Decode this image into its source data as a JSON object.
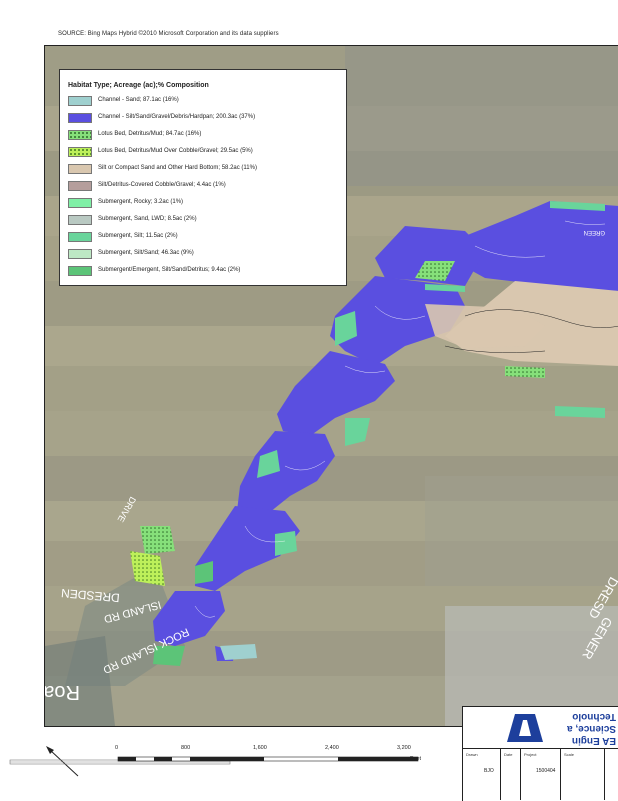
{
  "source_line": "SOURCE:       Bing     Maps     Hybrid       ©2010       Microsoft         Corporation              and      its     data      suppliers",
  "legend": {
    "title": "Habitat     Type;     Acreage     (ac);%     Composition",
    "items": [
      {
        "text": "Channel      - Sand;     87.1ac       (16%)",
        "color": "#9fd0cf",
        "pattern": "solid"
      },
      {
        "text": "Channel      - Silt/Sand/Gravel/Debris/Hardpan;                       200.3ac        (37%)",
        "color": "#5a4fe0",
        "pattern": "solid"
      },
      {
        "text": "Lotus     Bed,     Detritus/Mud;          84.7ac        (16%)",
        "color": "#86e07a",
        "pattern": "dots"
      },
      {
        "text": "Lotus     Bed,     Detritus/Mud          Over     Cobble/Gravel;          29.5ac       (5%)",
        "color": "#bdf05a",
        "pattern": "dots"
      },
      {
        "text": "Silt     or    Compact      Sand      and      Other     Hard     Bottom;      58.2ac       (11%)",
        "color": "#d9c7af",
        "pattern": "solid"
      },
      {
        "text": "Silt/Detritus-Covered                 Cobble/Gravel;          4.4ac       (1%)",
        "color": "#b59e9c",
        "pattern": "solid"
      },
      {
        "text": "Submergent,          Rocky;      3.2ac      (1%)",
        "color": "#7ff0a6",
        "pattern": "solid"
      },
      {
        "text": "Submergent,          Sand,      LWD;      8.5ac      (2%)",
        "color": "#b9c9c2",
        "pattern": "solid"
      },
      {
        "text": "Submergent,          Silt;     11.5ac      (2%)",
        "color": "#69d49b",
        "pattern": "solid"
      },
      {
        "text": "Submergent,          Silt/Sand;        46.3ac       (9%)",
        "color": "#bde8c4",
        "pattern": "solid"
      },
      {
        "text": "Submergent/Emergent,                  Silt/Sand/Detritus;            9.4ac       (2%)",
        "color": "#5cc478",
        "pattern": "solid"
      }
    ]
  },
  "map_labels": {
    "rock_island_road": "ROCK ISLAND RD",
    "dresden": "DRESDEN",
    "green": "GREEN",
    "drive": "DRIVE",
    "road_fragment": "Road",
    "island_road": "ISLAND RD",
    "dresd": "DRESD",
    "gener": "GENER"
  },
  "scale": {
    "ticks": [
      "0",
      "800",
      "1,600",
      "2,400",
      "3,200"
    ],
    "unit": "Feet"
  },
  "title_block": {
    "logo_line1": "EA Engin",
    "logo_line2": "Science, a",
    "logo_line3": "Technolo",
    "drawn_label": "Drawn",
    "drawn_value": "BJO",
    "project_label": "Project",
    "project_value": "1500404",
    "small_label_a": "Date",
    "small_label_b": "Scale"
  },
  "colors": {
    "channel_silt": "#5a4fe0",
    "silt_compact": "#d9c7af",
    "submergent_silt": "#69d49b",
    "lotus": "#86e07a",
    "aerial_base": "#a8a389"
  }
}
